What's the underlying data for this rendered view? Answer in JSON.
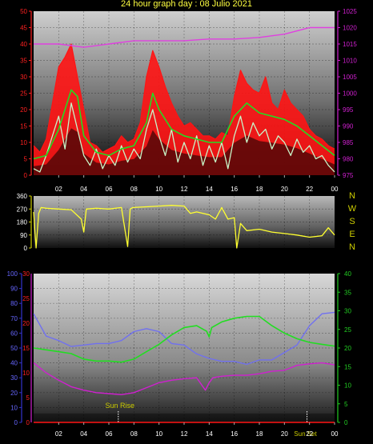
{
  "title": "24 hour graph day : 08 Julio 2021",
  "colors": {
    "red": "#ff1414",
    "green": "#22dd22",
    "lightgreen": "#c8f5c8",
    "magenta": "#e040e0",
    "yellow": "#ffff30",
    "blue": "#7070f0",
    "purple": "#d020d0",
    "navy": "#3333cc",
    "olive": "#cccc00",
    "greenaxis": "#22cc22",
    "redaxis": "#ff2020",
    "magaxis": "#d020d0"
  },
  "x_ticks": [
    "02",
    "04",
    "06",
    "08",
    "10",
    "12",
    "14",
    "16",
    "18",
    "20",
    "22",
    "00"
  ],
  "wind_dir_labels": [
    "N",
    "W",
    "S",
    "E",
    "N"
  ],
  "sun": {
    "rise_label": "Sun Rise",
    "set_label": "Sun Set"
  },
  "chart_data": [
    {
      "type": "line",
      "name": "wind",
      "y_left_ticks": [
        "0",
        "5",
        "10",
        "15",
        "20",
        "25",
        "30",
        "35",
        "40",
        "45",
        "50"
      ],
      "y_left_range": [
        0,
        50
      ],
      "y_right_ticks": [
        "975",
        "980",
        "985",
        "990",
        "995",
        "1000",
        "1005",
        "1010",
        "1015",
        "1020",
        "1025"
      ],
      "y_right_range": [
        975,
        1025
      ],
      "x_range_hours": [
        0,
        24
      ],
      "series": [
        {
          "key": "gust",
          "color": "red",
          "axis": "left",
          "x": [
            0,
            0.5,
            1,
            1.5,
            2,
            2.5,
            3,
            3.5,
            4,
            4.5,
            5,
            5.5,
            6,
            6.5,
            7,
            7.5,
            8,
            8.5,
            9,
            9.5,
            10,
            10.5,
            11,
            11.5,
            12,
            12.5,
            13,
            13.5,
            14,
            14.5,
            15,
            15.5,
            16,
            16.5,
            17,
            17.5,
            18,
            18.5,
            19,
            19.5,
            20,
            20.5,
            21,
            21.5,
            22,
            22.5,
            23,
            23.5,
            24
          ],
          "values": [
            9,
            7,
            11,
            22,
            33,
            36,
            40,
            30,
            20,
            10,
            9,
            7,
            8,
            9,
            12,
            10,
            11,
            16,
            30,
            38,
            33,
            27,
            22,
            18,
            15,
            16,
            14,
            12,
            12,
            11,
            13,
            12,
            24,
            32,
            28,
            26,
            25,
            30,
            22,
            20,
            26,
            22,
            20,
            18,
            14,
            12,
            11,
            9,
            8
          ]
        },
        {
          "key": "avg",
          "color": "green",
          "axis": "left",
          "x": [
            0,
            1,
            2,
            3,
            3.5,
            4,
            5,
            6,
            7,
            8,
            9,
            9.5,
            10,
            11,
            12,
            13,
            14,
            15,
            16,
            17,
            18,
            19,
            20,
            21,
            22,
            23,
            24
          ],
          "values": [
            5,
            6,
            14,
            26,
            24,
            12,
            7,
            6,
            8,
            9,
            16,
            25,
            20,
            14,
            12,
            11,
            10,
            10,
            18,
            22,
            19,
            18,
            17,
            15,
            12,
            9,
            6
          ]
        },
        {
          "key": "speed",
          "color": "lightgreen",
          "axis": "left",
          "x": [
            0,
            0.5,
            1,
            1.5,
            2,
            2.5,
            3,
            3.5,
            4,
            4.5,
            5,
            5.5,
            6,
            6.5,
            7,
            7.5,
            8,
            8.5,
            9,
            9.5,
            10,
            10.5,
            11,
            11.5,
            12,
            12.5,
            13,
            13.5,
            14,
            14.5,
            15,
            15.5,
            16,
            16.5,
            17,
            17.5,
            18,
            18.5,
            19,
            19.5,
            20,
            20.5,
            21,
            21.5,
            22,
            22.5,
            23,
            23.5,
            24
          ],
          "values": [
            2,
            1,
            6,
            12,
            18,
            8,
            22,
            14,
            6,
            3,
            8,
            2,
            6,
            3,
            9,
            4,
            8,
            5,
            14,
            20,
            12,
            6,
            14,
            4,
            10,
            5,
            12,
            3,
            9,
            4,
            10,
            2,
            12,
            18,
            10,
            16,
            12,
            14,
            8,
            12,
            10,
            6,
            11,
            7,
            9,
            5,
            6,
            3,
            1
          ]
        },
        {
          "key": "pressure",
          "color": "magenta",
          "axis": "right",
          "x": [
            0,
            2,
            4,
            6,
            8,
            10,
            12,
            14,
            16,
            18,
            20,
            22,
            24
          ],
          "values": [
            1015,
            1015,
            1014,
            1015,
            1016,
            1016,
            1016,
            1016.5,
            1016.5,
            1017,
            1018,
            1020,
            1020
          ]
        }
      ]
    },
    {
      "type": "line",
      "name": "wind_direction",
      "y_ticks": [
        "0",
        "90",
        "180",
        "270",
        "360"
      ],
      "y_range": [
        0,
        360
      ],
      "x_range_hours": [
        0,
        24
      ],
      "series": [
        {
          "key": "dir",
          "color": "yellow",
          "x": [
            0,
            0.2,
            0.4,
            0.6,
            1,
            2,
            3,
            3.8,
            4,
            4.2,
            5,
            6,
            7,
            7.5,
            7.7,
            7.9,
            9,
            10,
            11,
            12,
            12.5,
            13,
            14,
            14.5,
            15,
            15.5,
            16,
            16.2,
            16.5,
            17,
            18,
            19,
            20,
            21,
            22,
            23,
            23.5,
            24
          ],
          "values": [
            250,
            0,
            240,
            280,
            275,
            270,
            265,
            200,
            110,
            270,
            275,
            270,
            280,
            10,
            270,
            280,
            285,
            290,
            295,
            290,
            240,
            250,
            230,
            200,
            280,
            200,
            210,
            0,
            170,
            120,
            130,
            110,
            100,
            90,
            75,
            85,
            140,
            90
          ]
        }
      ]
    },
    {
      "type": "line",
      "name": "temp_humidity",
      "y_left_ticks": [
        "0",
        "10",
        "20",
        "30",
        "40",
        "50",
        "60",
        "70",
        "80",
        "90",
        "100"
      ],
      "y_left_range": [
        0,
        100
      ],
      "y_mid_ticks": [
        "0",
        "5",
        "10",
        "15",
        "20",
        "25",
        "30"
      ],
      "y_mid_range": [
        0,
        30
      ],
      "y_right_ticks": [
        "0",
        "5",
        "10",
        "15",
        "20",
        "25",
        "30",
        "35",
        "40"
      ],
      "y_right_range": [
        0,
        40
      ],
      "x_range_hours": [
        0,
        24
      ],
      "series": [
        {
          "key": "humidity",
          "color": "blue",
          "axis": "left",
          "x": [
            0,
            1,
            2,
            3,
            4,
            5,
            6,
            7,
            8,
            9,
            10,
            11,
            12,
            13,
            14,
            15,
            16,
            17,
            18,
            19,
            20,
            21,
            22,
            23,
            24
          ],
          "values": [
            73,
            58,
            55,
            51,
            52,
            53,
            53,
            55,
            61,
            63,
            61,
            53,
            52,
            46,
            43,
            41,
            41,
            39,
            42,
            42,
            47,
            52,
            65,
            73,
            74
          ]
        },
        {
          "key": "dewpoint",
          "color": "purple",
          "axis": "mid",
          "x": [
            0,
            1,
            2,
            3,
            4,
            5,
            6,
            7,
            8,
            9,
            10,
            11,
            12,
            13,
            13.7,
            14,
            14.3,
            15,
            16,
            17,
            18,
            19,
            20,
            21,
            22,
            23,
            24
          ],
          "values": [
            12,
            10,
            8.5,
            7.2,
            6.5,
            6,
            5.8,
            5.6,
            6,
            7,
            8,
            8.5,
            8.8,
            9,
            6.5,
            8,
            9,
            9.3,
            9.5,
            9.5,
            9.8,
            10.3,
            10.5,
            11.5,
            11.8,
            12,
            11.6
          ]
        },
        {
          "key": "temperature",
          "color": "green",
          "axis": "right",
          "x": [
            0,
            1,
            2,
            3,
            4,
            5,
            6,
            7,
            8,
            9,
            10,
            11,
            12,
            13,
            13.8,
            14,
            14.2,
            15,
            16,
            17,
            18,
            19,
            20,
            21,
            22,
            23,
            24
          ],
          "values": [
            20,
            19.5,
            19,
            18.5,
            17,
            16.5,
            16.5,
            16.2,
            17,
            19,
            21,
            23.5,
            25.5,
            26,
            24.5,
            23,
            25.5,
            27,
            28,
            28.5,
            28.5,
            26,
            24,
            22.5,
            21.5,
            21,
            20.5
          ]
        },
        {
          "key": "zero",
          "color": "red",
          "axis": "left",
          "x": [
            0,
            24
          ],
          "values": [
            0,
            0
          ]
        }
      ]
    }
  ]
}
